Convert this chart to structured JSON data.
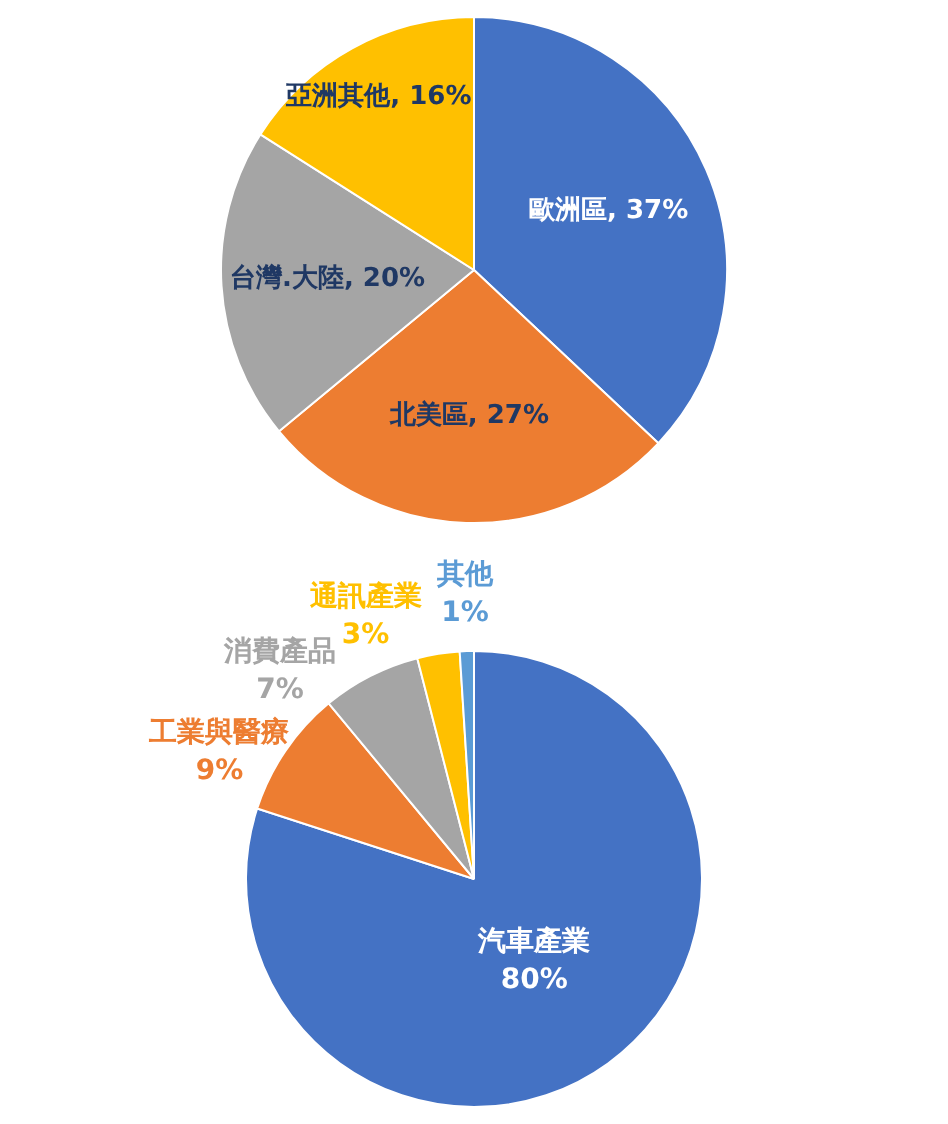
{
  "chart_data": [
    {
      "type": "pie",
      "categories": [
        "歐洲區",
        "北美區",
        "台灣.大陸",
        "亞洲其他"
      ],
      "values": [
        37,
        27,
        20,
        16
      ],
      "value_labels": [
        "37%",
        "27%",
        "20%",
        "16%"
      ],
      "colors": [
        "#4472c4",
        "#ed7d31",
        "#a5a5a5",
        "#ffc000"
      ],
      "legend": false
    },
    {
      "type": "pie",
      "categories": [
        "汽車產業",
        "工業與醫療",
        "消費產品",
        "通訊產業",
        "其他"
      ],
      "values": [
        80,
        9,
        7,
        3,
        1
      ],
      "value_labels": [
        "80%",
        "9%",
        "7%",
        "3%",
        "1%"
      ],
      "colors": [
        "#4472c4",
        "#ed7d31",
        "#a5a5a5",
        "#ffc000",
        "#5b9bd5"
      ],
      "legend": false
    }
  ]
}
